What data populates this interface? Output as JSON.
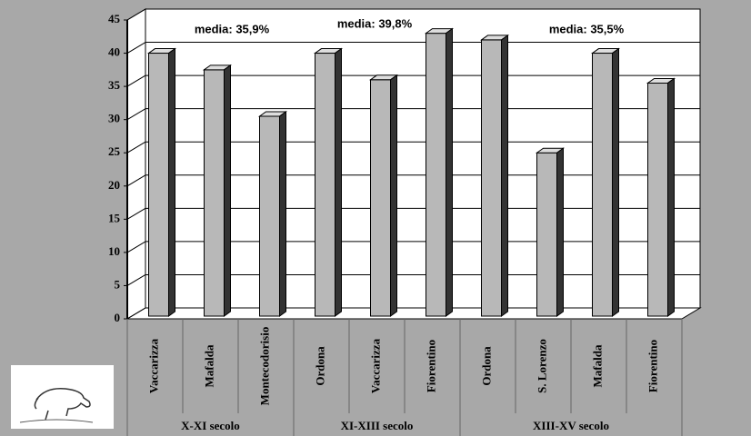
{
  "chart_data": {
    "type": "bar3d",
    "color": "#b8b8b8",
    "ylim": [
      0,
      45
    ],
    "yticks": [
      0,
      5,
      10,
      15,
      20,
      25,
      30,
      35,
      40,
      45
    ],
    "grid": true,
    "groups": [
      {
        "name": "X-XI secolo",
        "annotation": "media: 35,9%",
        "categories": [
          "Vaccarizza",
          "Mafalda",
          "Montecodorisio"
        ],
        "values": [
          40,
          37.5,
          30.5
        ]
      },
      {
        "name": "XI-XIII secolo",
        "annotation": "media: 39,8%",
        "categories": [
          "Ordona",
          "Vaccarizza",
          "Fiorentino"
        ],
        "values": [
          40,
          36,
          43
        ]
      },
      {
        "name": "XIII-XV secolo",
        "annotation": "media: 35,5%",
        "categories": [
          "Ordona",
          "S. Lorenzo",
          "Mafalda",
          "Fiorentino"
        ],
        "values": [
          42,
          25,
          40,
          35.5
        ]
      }
    ]
  }
}
